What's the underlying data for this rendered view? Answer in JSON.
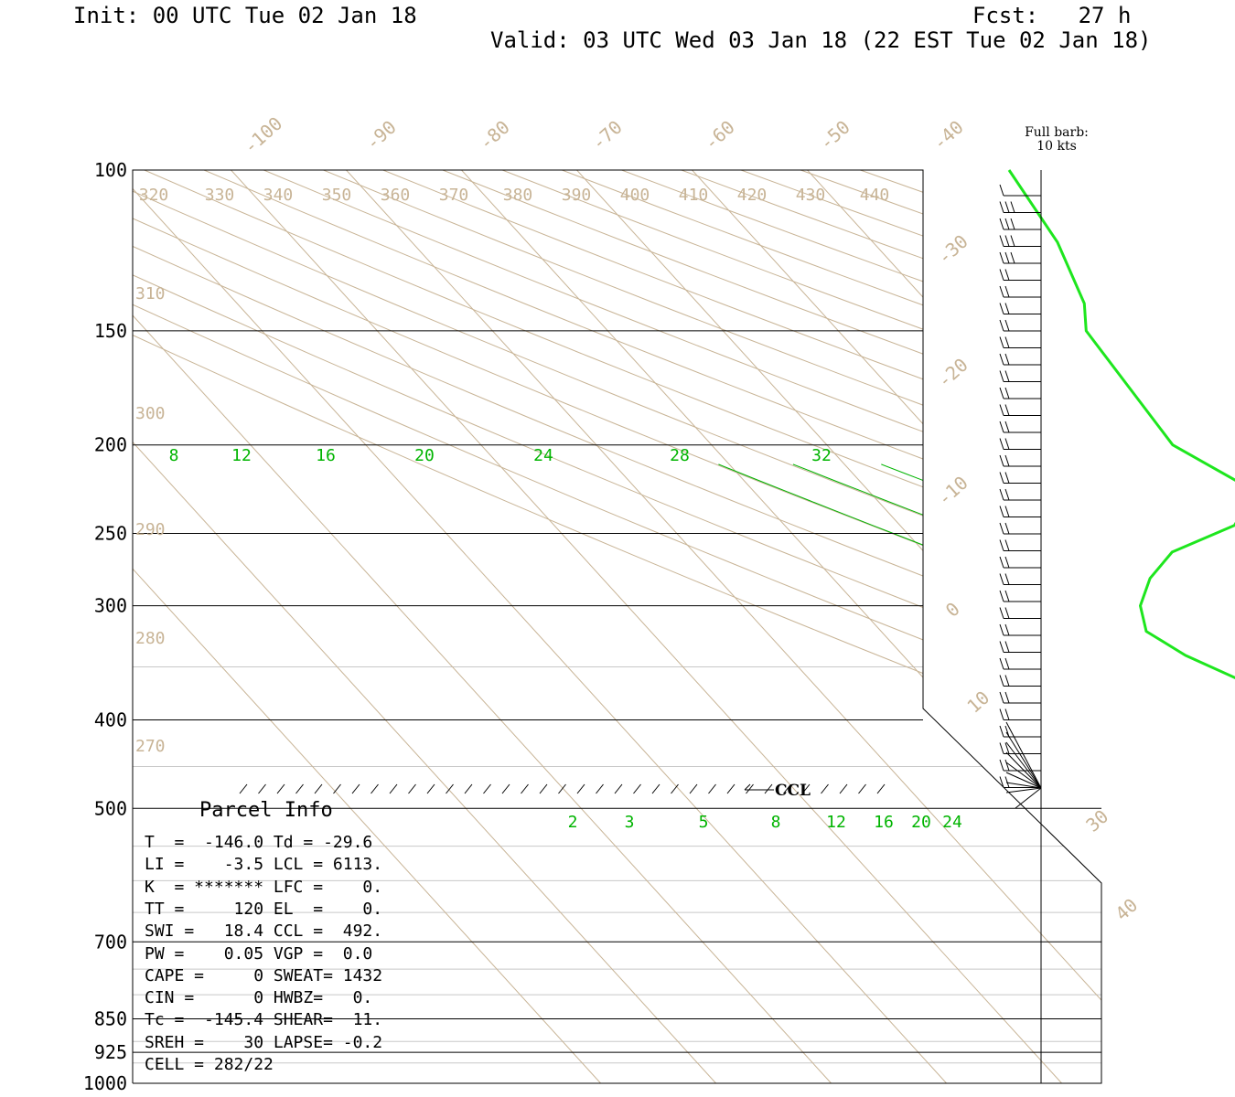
{
  "header": {
    "init": "Init: 00 UTC Tue 02 Jan 18",
    "fcst": "Fcst:   27 h",
    "valid": "Valid: 03 UTC Wed 03 Jan 18 (22 EST Tue 02 Jan 18)"
  },
  "barb_legend": {
    "line1": "Full barb:",
    "line2": "10 kts"
  },
  "parcel": {
    "title": "Parcel Info",
    "rows": [
      "T  =  -146.0 Td = -29.6",
      "LI =    -3.5 LCL = 6113.",
      "K  = ******* LFC =    0.",
      "TT =     120 EL  =    0.",
      "SWI =   18.4 CCL =  492.",
      "PW =    0.05 VGP =  0.0",
      "CAPE =     0 SWEAT= 1432",
      "CIN =      0 HWBZ=   0.",
      "Tc =  -145.4 SHEAR=  11.",
      "SREH =    30 LAPSE= -0.2",
      "CELL = 282/22"
    ]
  },
  "colors": {
    "background": "#ffffff",
    "isobar": "#000000",
    "isotherm": "#c8b496",
    "dry_adiabat": "#c8b496",
    "moist_adiabat": "#00b400",
    "mixing_ratio": "#00b400",
    "dewpoint_trace": "#1ee61e",
    "label_tan": "#c8b496"
  },
  "chart_data": {
    "type": "skew-t",
    "pressure_axis_labels": [
      "100",
      "150",
      "200",
      "250",
      "300",
      "400",
      "500",
      "700",
      "850",
      "925",
      "1000"
    ],
    "isotherm_labels": [
      "-100",
      "-90",
      "-80",
      "-70",
      "-60",
      "-50",
      "-40",
      "-30",
      "-20",
      "-10",
      "0",
      "10",
      "30",
      "40"
    ],
    "theta_labels_top": [
      "320",
      "330",
      "340",
      "350",
      "360",
      "370",
      "380",
      "390",
      "400",
      "410",
      "420",
      "430",
      "440"
    ],
    "theta_labels_left": [
      "310",
      "300",
      "290",
      "280",
      "270"
    ],
    "moist_adiabat_labels": [
      "8",
      "12",
      "16",
      "20",
      "24",
      "28",
      "32"
    ],
    "mixing_ratio_labels": [
      "2",
      "3",
      "5",
      "8",
      "12",
      "16",
      "20",
      "24"
    ],
    "ccl_label": "CCL",
    "dewpoint_profile": [
      {
        "p": 100,
        "t": -32.5
      },
      {
        "p": 120,
        "t": -34.0
      },
      {
        "p": 140,
        "t": -36.5
      },
      {
        "p": 150,
        "t": -38.5
      },
      {
        "p": 200,
        "t": -40.0
      },
      {
        "p": 225,
        "t": -36.5
      },
      {
        "p": 245,
        "t": -41.0
      },
      {
        "p": 262,
        "t": -48.5
      },
      {
        "p": 280,
        "t": -52.5
      },
      {
        "p": 300,
        "t": -55.5
      },
      {
        "p": 320,
        "t": -57.0
      },
      {
        "p": 340,
        "t": -55.5
      },
      {
        "p": 380,
        "t": -50.5
      },
      {
        "p": 400,
        "t": -49.5
      },
      {
        "p": 430,
        "t": -50.5
      },
      {
        "p": 460,
        "t": -47.0
      },
      {
        "p": 495,
        "t": -47.0
      }
    ],
    "wind_barb_count": 36
  }
}
